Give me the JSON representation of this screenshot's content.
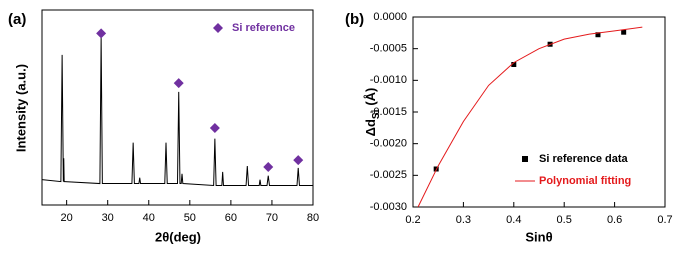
{
  "chart_data": [
    {
      "type": "line",
      "panel_label": "(a)",
      "x_label": "2θ(deg)",
      "y_label": "Intensity (a.u.)",
      "xlim": [
        14,
        80
      ],
      "xticks": [
        20,
        30,
        40,
        50,
        60,
        70,
        80
      ],
      "ylim": [
        0,
        100
      ],
      "legend": "top-right",
      "series": [
        {
          "type": "line",
          "color": "#000000",
          "x": [
            14,
            18.6,
            18.9,
            19.2,
            19.3,
            19.4,
            19.6,
            28.1,
            28.4,
            28.7,
            35.9,
            36.2,
            36.5,
            37.6,
            37.8,
            38.0,
            43.9,
            44.2,
            44.5,
            47.0,
            47.3,
            47.6,
            47.9,
            48.1,
            48.3,
            55.8,
            56.1,
            56.4,
            57.8,
            58.0,
            58.2,
            63.7,
            64.0,
            64.3,
            66.9,
            67.1,
            67.3,
            68.8,
            69.1,
            69.4,
            76.1,
            76.4,
            76.7,
            80
          ],
          "values": [
            13,
            12,
            77,
            12,
            24,
            12,
            12,
            11,
            86,
            11,
            11,
            32,
            11,
            11,
            14,
            11,
            11,
            32,
            11,
            11,
            58,
            11,
            11,
            16,
            11,
            10,
            34,
            10,
            10,
            17,
            10,
            10,
            20,
            10,
            10,
            13,
            10,
            10,
            15,
            10,
            10,
            19,
            10,
            10
          ]
        },
        {
          "type": "diamond",
          "name": "Si reference",
          "color": "#7030a0",
          "x": [
            28.4,
            47.3,
            56.1,
            69.1,
            76.4
          ],
          "values": [
            88,
            62.5,
            39.5,
            19.5,
            23
          ]
        }
      ]
    },
    {
      "type": "line",
      "panel_label": "(b)",
      "x_label": "Sinθ",
      "y_label": "Δd",
      "y_label_sub": "Si",
      "y_label_unit": "(Å)",
      "xlim": [
        0.2,
        0.7
      ],
      "xticks": [
        0.2,
        0.3,
        0.4,
        0.5,
        0.6,
        0.7
      ],
      "ylim": [
        -0.003,
        0
      ],
      "yticks": [
        {
          "value": -0.003,
          "label": "-0.0030"
        },
        {
          "value": -0.0025,
          "label": "-0.0025"
        },
        {
          "value": -0.002,
          "label": "-0.0020"
        },
        {
          "value": -0.0015,
          "label": "-0.0015"
        },
        {
          "value": -0.001,
          "label": "-0.0010"
        },
        {
          "value": -0.0005,
          "label": "-0.0005"
        },
        {
          "value": 0,
          "label": "0.0000"
        }
      ],
      "legend": "bottom-right",
      "series": [
        {
          "type": "square",
          "name": "Si reference data",
          "color": "#000000",
          "x": [
            0.246,
            0.4,
            0.472,
            0.567,
            0.618
          ],
          "values": [
            -0.0024,
            -0.00075,
            -0.00043,
            -0.00028,
            -0.00024
          ]
        },
        {
          "type": "line",
          "name": "Polynomial fitting",
          "color": "#e41a1c",
          "x": [
            0.21,
            0.25,
            0.3,
            0.35,
            0.4,
            0.45,
            0.5,
            0.55,
            0.6,
            0.655
          ],
          "values": [
            -0.003,
            -0.00235,
            -0.00165,
            -0.00108,
            -0.00072,
            -0.0005,
            -0.00035,
            -0.00027,
            -0.00022,
            -0.00016
          ]
        }
      ]
    }
  ]
}
